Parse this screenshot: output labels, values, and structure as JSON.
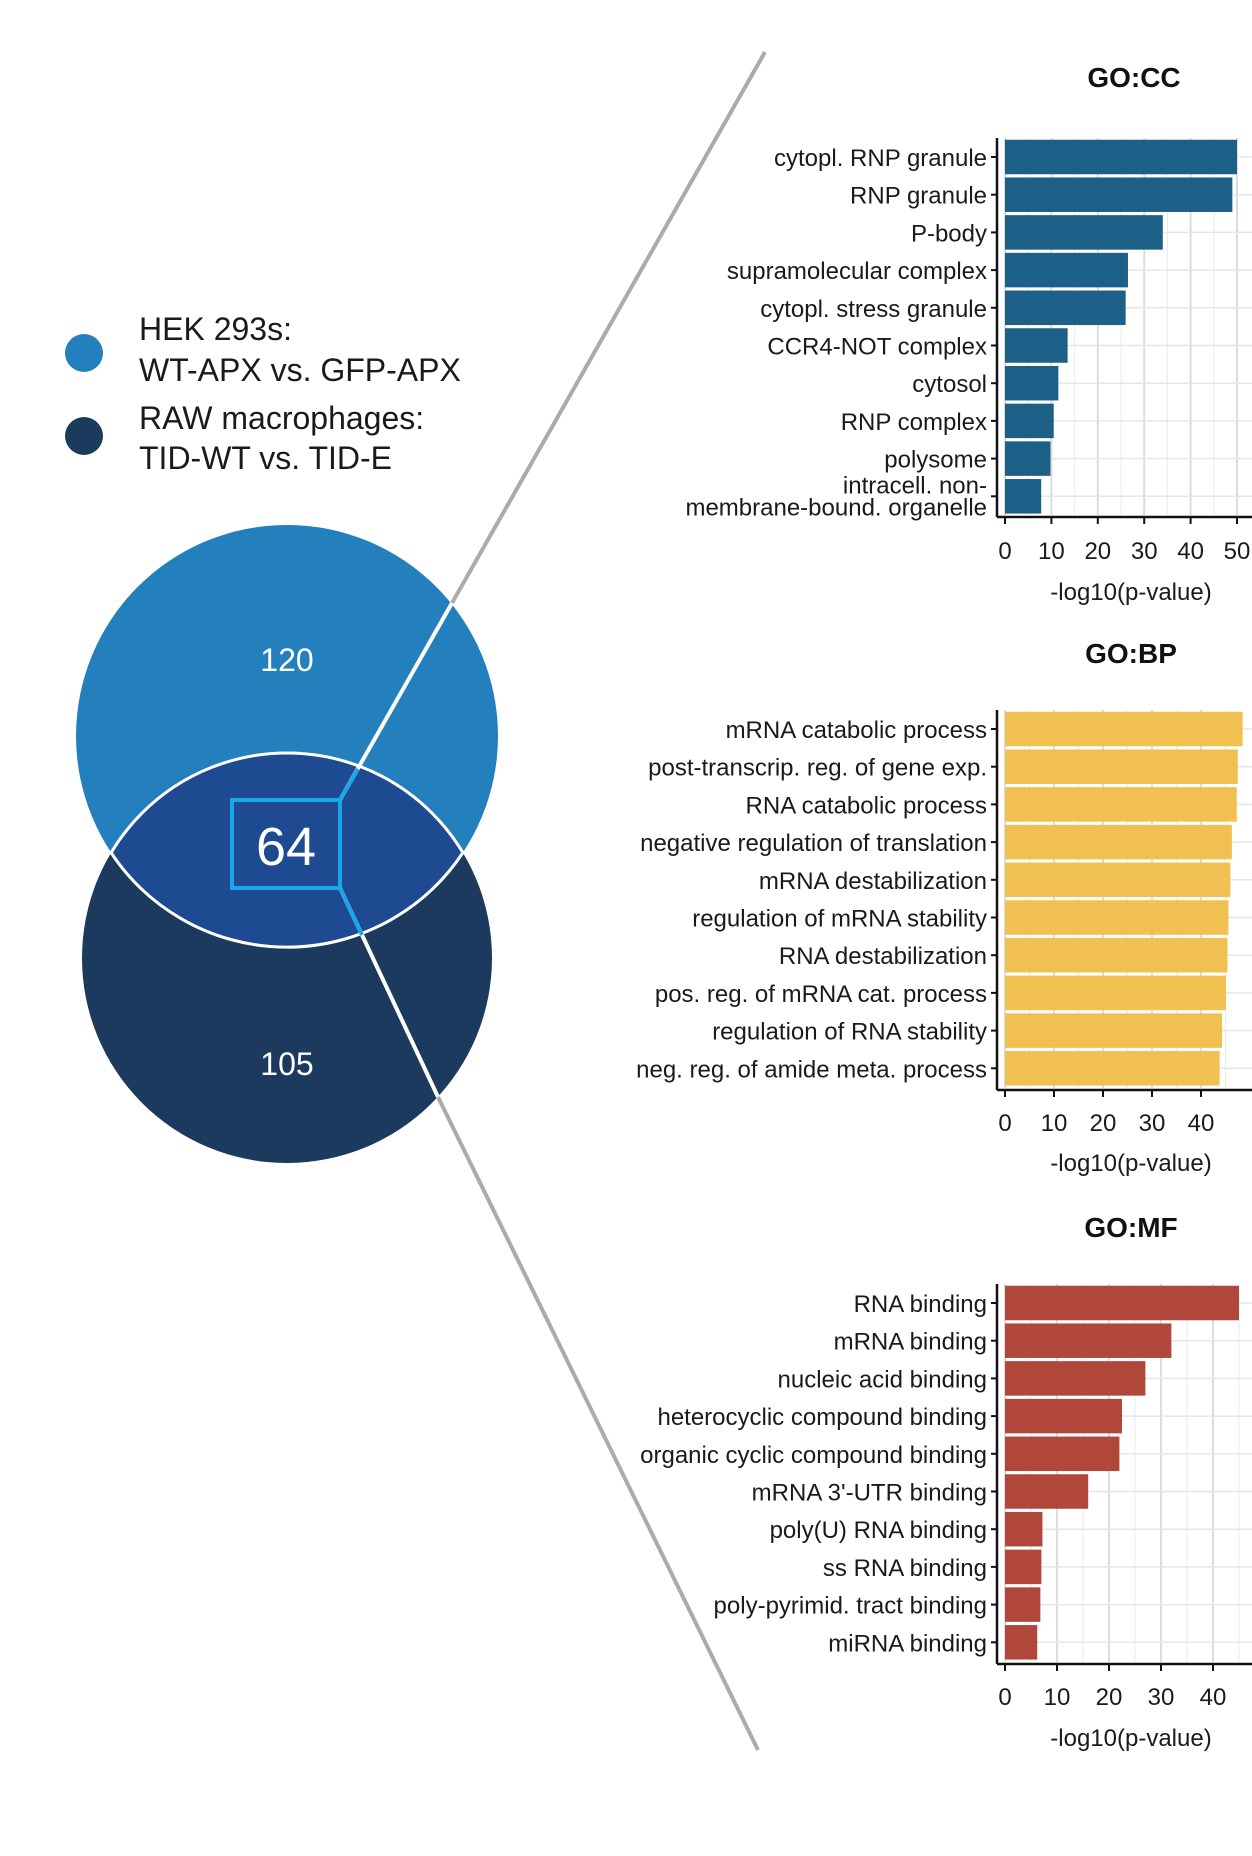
{
  "legend": {
    "items": [
      {
        "line1": "HEK 293s:",
        "line2": "WT-APX vs. GFP-APX",
        "color": "#2480bd"
      },
      {
        "line1": "RAW macrophages:",
        "line2": "TID-WT vs. TID-E",
        "color": "#1c3a5e"
      }
    ]
  },
  "venn": {
    "only_a": "120",
    "overlap": "64",
    "only_b": "105",
    "color_a": "#2480bd",
    "color_b": "#1c3a5e",
    "color_overlap": "#1e4a91",
    "highlight": "#1aa6ea"
  },
  "chart_data": [
    {
      "type": "bar",
      "orientation": "horizontal",
      "title": "GO:CC",
      "xlabel": "-log10(p-value)",
      "xlim": [
        0,
        50
      ],
      "xticks": [
        0,
        10,
        20,
        30,
        40,
        50
      ],
      "color": "#1c5f87",
      "grid": true,
      "categories": [
        "cytopl. RNP granule",
        "RNP granule",
        "P-body",
        "supramolecular complex",
        "cytopl. stress granule",
        "CCR4-NOT complex",
        "cytosol",
        "RNP complex",
        "polysome",
        "intracell. non-\nmembrane-bound. organelle"
      ],
      "values": [
        50,
        49,
        34,
        26.5,
        26,
        13.5,
        11.5,
        10.5,
        9.8,
        7.8
      ]
    },
    {
      "type": "bar",
      "orientation": "horizontal",
      "title": "GO:BP",
      "xlabel": "-log10(p-value)",
      "xlim": [
        0,
        49.5
      ],
      "xticks": [
        0,
        10,
        20,
        30,
        40
      ],
      "color": "#f0c050",
      "grid": true,
      "categories": [
        "mRNA catabolic process",
        "post-transcrip. reg. of gene exp.",
        "RNA catabolic process",
        "negative regulation of translation",
        "mRNA destabilization",
        "regulation of mRNA stability",
        "RNA destabilization",
        "pos. reg. of mRNA cat. process",
        "regulation of RNA stability",
        "neg. reg. of amide meta. process"
      ],
      "values": [
        48.5,
        47.5,
        47.3,
        46.3,
        46,
        45.6,
        45.4,
        45.1,
        44.3,
        43.8
      ]
    },
    {
      "type": "bar",
      "orientation": "horizontal",
      "title": "GO:MF",
      "xlabel": "-log10(p-value)",
      "xlim": [
        0,
        47
      ],
      "xticks": [
        0,
        10,
        20,
        30,
        40
      ],
      "color": "#b0473a",
      "grid": true,
      "categories": [
        "RNA binding",
        "mRNA binding",
        "nucleic acid binding",
        "heterocyclic compound binding",
        "organic cyclic compound binding",
        "mRNA 3'-UTR binding",
        "poly(U) RNA binding",
        "ss RNA binding",
        "poly-pyrimid. tract binding",
        "miRNA binding"
      ],
      "values": [
        45,
        32,
        27,
        22.5,
        22,
        16,
        7.2,
        7,
        6.8,
        6.2
      ]
    }
  ]
}
